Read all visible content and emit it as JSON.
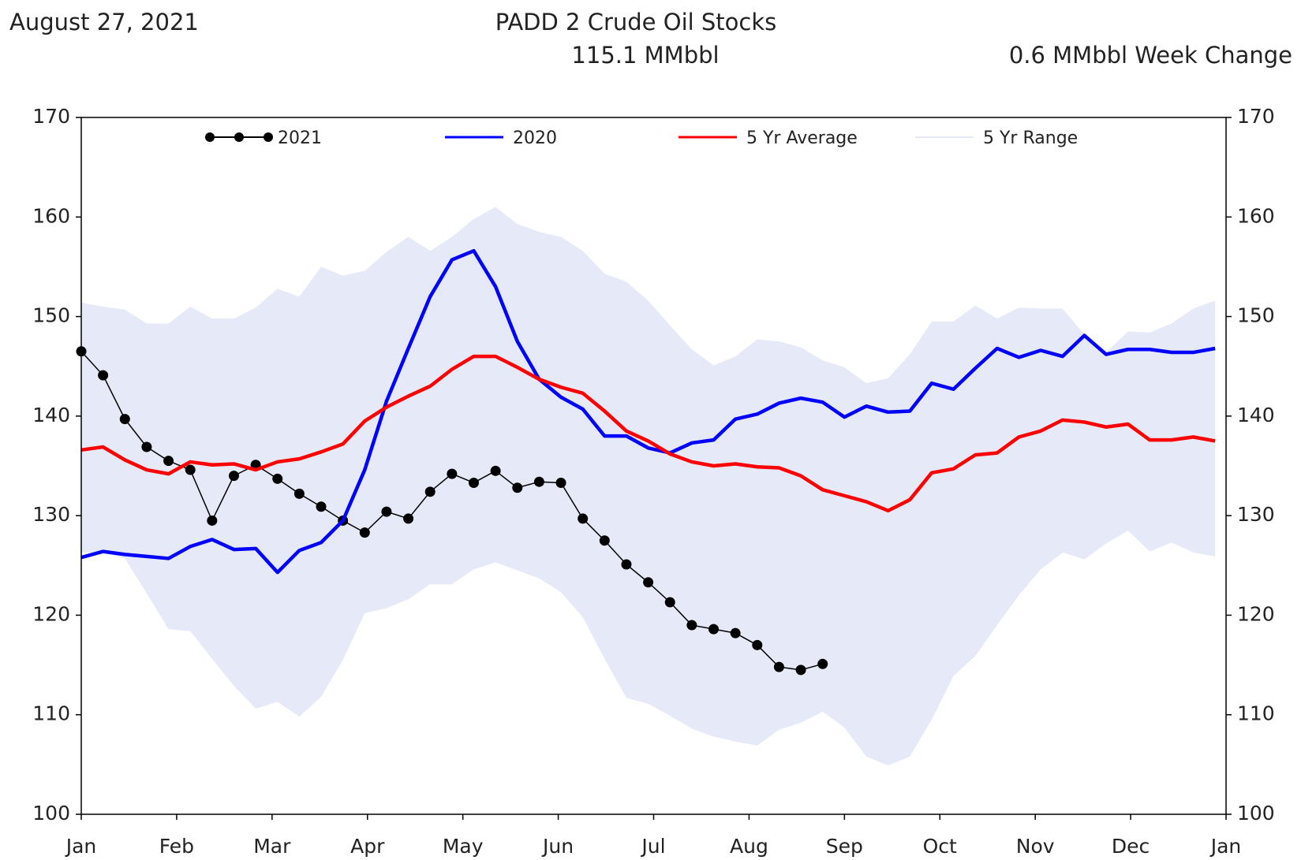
{
  "chart_data": {
    "type": "line",
    "date": "August 27, 2021",
    "title": "PADD 2 Crude Oil Stocks",
    "subtitle": "115.1 MMbbl",
    "annotation": "0.6 MMbbl Week Change",
    "x": [
      0,
      1,
      2,
      3,
      4,
      5,
      6,
      7,
      8,
      9,
      10,
      11,
      12,
      13,
      14,
      15,
      16,
      17,
      18,
      19,
      20,
      21,
      22,
      23,
      24,
      25,
      26,
      27,
      28,
      29,
      30,
      31,
      32,
      33,
      34,
      35,
      36,
      37,
      38,
      39,
      40,
      41,
      42,
      43,
      44,
      45,
      46,
      47,
      48,
      49,
      50,
      51,
      52
    ],
    "xlim": [
      0,
      52.5
    ],
    "xticks": [
      {
        "value": 0,
        "label": "Jan"
      },
      {
        "value": 4.375,
        "label": "Feb"
      },
      {
        "value": 8.75,
        "label": "Mar"
      },
      {
        "value": 13.125,
        "label": "Apr"
      },
      {
        "value": 17.5,
        "label": "May"
      },
      {
        "value": 21.875,
        "label": "Jun"
      },
      {
        "value": 26.25,
        "label": "Jul"
      },
      {
        "value": 30.625,
        "label": "Aug"
      },
      {
        "value": 35,
        "label": "Sep"
      },
      {
        "value": 39.375,
        "label": "Oct"
      },
      {
        "value": 43.75,
        "label": "Nov"
      },
      {
        "value": 48.125,
        "label": "Dec"
      },
      {
        "value": 52.5,
        "label": "Jan"
      }
    ],
    "ylim": [
      100,
      170
    ],
    "yticks": [
      100,
      110,
      120,
      130,
      140,
      150,
      160,
      170
    ],
    "series": [
      {
        "name": "2021",
        "color": "#000000",
        "values": [
          146.5,
          144.1,
          139.7,
          136.9,
          135.5,
          134.6,
          129.5,
          134.0,
          135.1,
          133.7,
          132.2,
          130.9,
          129.5,
          128.3,
          130.4,
          129.7,
          132.4,
          134.2,
          133.3,
          134.5,
          132.8,
          133.4,
          133.3,
          129.7,
          127.5,
          125.1,
          123.3,
          121.3,
          119.0,
          118.6,
          118.2,
          117.0,
          114.8,
          114.5,
          115.1,
          null,
          null,
          null,
          null,
          null,
          null,
          null,
          null,
          null,
          null,
          null,
          null,
          null,
          null,
          null,
          null,
          null,
          null
        ]
      },
      {
        "name": "2020",
        "color": "#0000ff",
        "values": [
          125.8,
          126.4,
          126.1,
          125.9,
          125.7,
          126.9,
          127.6,
          126.6,
          126.7,
          124.3,
          126.5,
          127.3,
          129.5,
          134.6,
          141.5,
          146.8,
          152.0,
          155.7,
          156.6,
          153.0,
          147.5,
          143.7,
          141.9,
          140.7,
          138.0,
          138.0,
          136.8,
          136.3,
          137.3,
          137.6,
          139.7,
          140.2,
          141.3,
          141.8,
          141.4,
          139.9,
          141.0,
          140.4,
          140.5,
          143.3,
          142.7,
          144.8,
          146.8,
          145.9,
          146.6,
          146.0,
          148.1,
          146.2,
          146.7,
          146.7,
          146.4,
          146.4,
          146.8
        ]
      },
      {
        "name": "5 Yr Average",
        "color": "#ff0000",
        "values": [
          136.6,
          136.9,
          135.6,
          134.6,
          134.2,
          135.4,
          135.1,
          135.2,
          134.6,
          135.4,
          135.7,
          136.4,
          137.2,
          139.5,
          140.9,
          142.0,
          143.0,
          144.7,
          146.0,
          146.0,
          144.9,
          143.7,
          142.9,
          142.3,
          140.5,
          138.5,
          137.5,
          136.2,
          135.4,
          135.0,
          135.2,
          134.9,
          134.8,
          134.0,
          132.6,
          132.0,
          131.4,
          130.5,
          131.6,
          134.3,
          134.7,
          136.1,
          136.3,
          137.9,
          138.5,
          139.6,
          139.4,
          138.9,
          139.2,
          137.6,
          137.6,
          137.9,
          137.5
        ]
      },
      {
        "name": "5 Yr Range",
        "color": "#e6e9f7",
        "upper": [
          151.4,
          151.0,
          150.7,
          149.3,
          149.3,
          151.0,
          149.8,
          149.8,
          150.9,
          152.8,
          152.0,
          155.0,
          154.1,
          154.6,
          156.5,
          158.0,
          156.6,
          158.0,
          159.8,
          161.0,
          159.3,
          158.5,
          158.0,
          156.6,
          154.3,
          153.5,
          151.6,
          149.1,
          146.7,
          145.1,
          146.0,
          147.7,
          147.5,
          146.9,
          145.6,
          144.9,
          143.3,
          143.8,
          146.2,
          149.5,
          149.5,
          151.1,
          149.8,
          150.9,
          150.8,
          150.8,
          148.2,
          146.4,
          148.5,
          148.4,
          149.3,
          150.8,
          151.6
        ],
        "lower": [
          126.3,
          126.3,
          125.7,
          122.2,
          118.6,
          118.4,
          115.6,
          112.9,
          110.6,
          111.3,
          109.8,
          111.8,
          115.5,
          120.2,
          120.7,
          121.6,
          123.1,
          123.1,
          124.6,
          125.3,
          124.5,
          123.7,
          122.3,
          119.8,
          115.6,
          111.7,
          111.1,
          109.9,
          108.6,
          107.8,
          107.3,
          106.9,
          108.5,
          109.2,
          110.3,
          108.7,
          105.8,
          104.9,
          105.8,
          109.5,
          113.9,
          115.9,
          119.0,
          122.0,
          124.6,
          126.3,
          125.6,
          127.2,
          128.5,
          126.4,
          127.3,
          126.3,
          125.9
        ]
      }
    ]
  }
}
